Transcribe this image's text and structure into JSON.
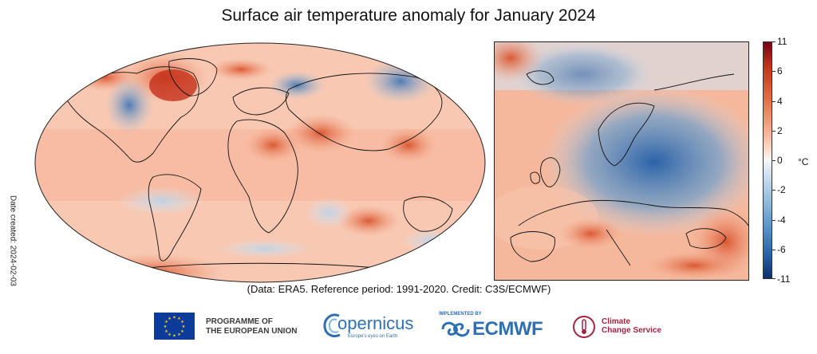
{
  "title": "Surface air temperature anomaly for January 2024",
  "side_label": "Date created: 2024-02-03",
  "colorbar": {
    "ticks": [
      "11",
      "6",
      "4",
      "2",
      "0",
      "-2",
      "-4",
      "-6",
      "-11"
    ],
    "unit": "°C"
  },
  "caption": "(Data: ERA5.  Reference period: 1991-2020.  Credit: C3S/ECMWF)",
  "logos": {
    "eu_line1": "PROGRAMME OF",
    "eu_line2": "THE EUROPEAN UNION",
    "copernicus": "opernicus",
    "copernicus_tagline": "Europe's eyes on Earth",
    "ecmwf_small": "IMPLEMENTED BY",
    "ecmwf": "ECMWF",
    "c3s_line1": "Climate",
    "c3s_line2": "Change Service"
  },
  "colors": {
    "warm_strong": "#c4311b",
    "warm_light": "#f3a181",
    "neutral": "#f7f7f7",
    "cool_light": "#9ec3e2",
    "cool_strong": "#2a62a8"
  }
}
